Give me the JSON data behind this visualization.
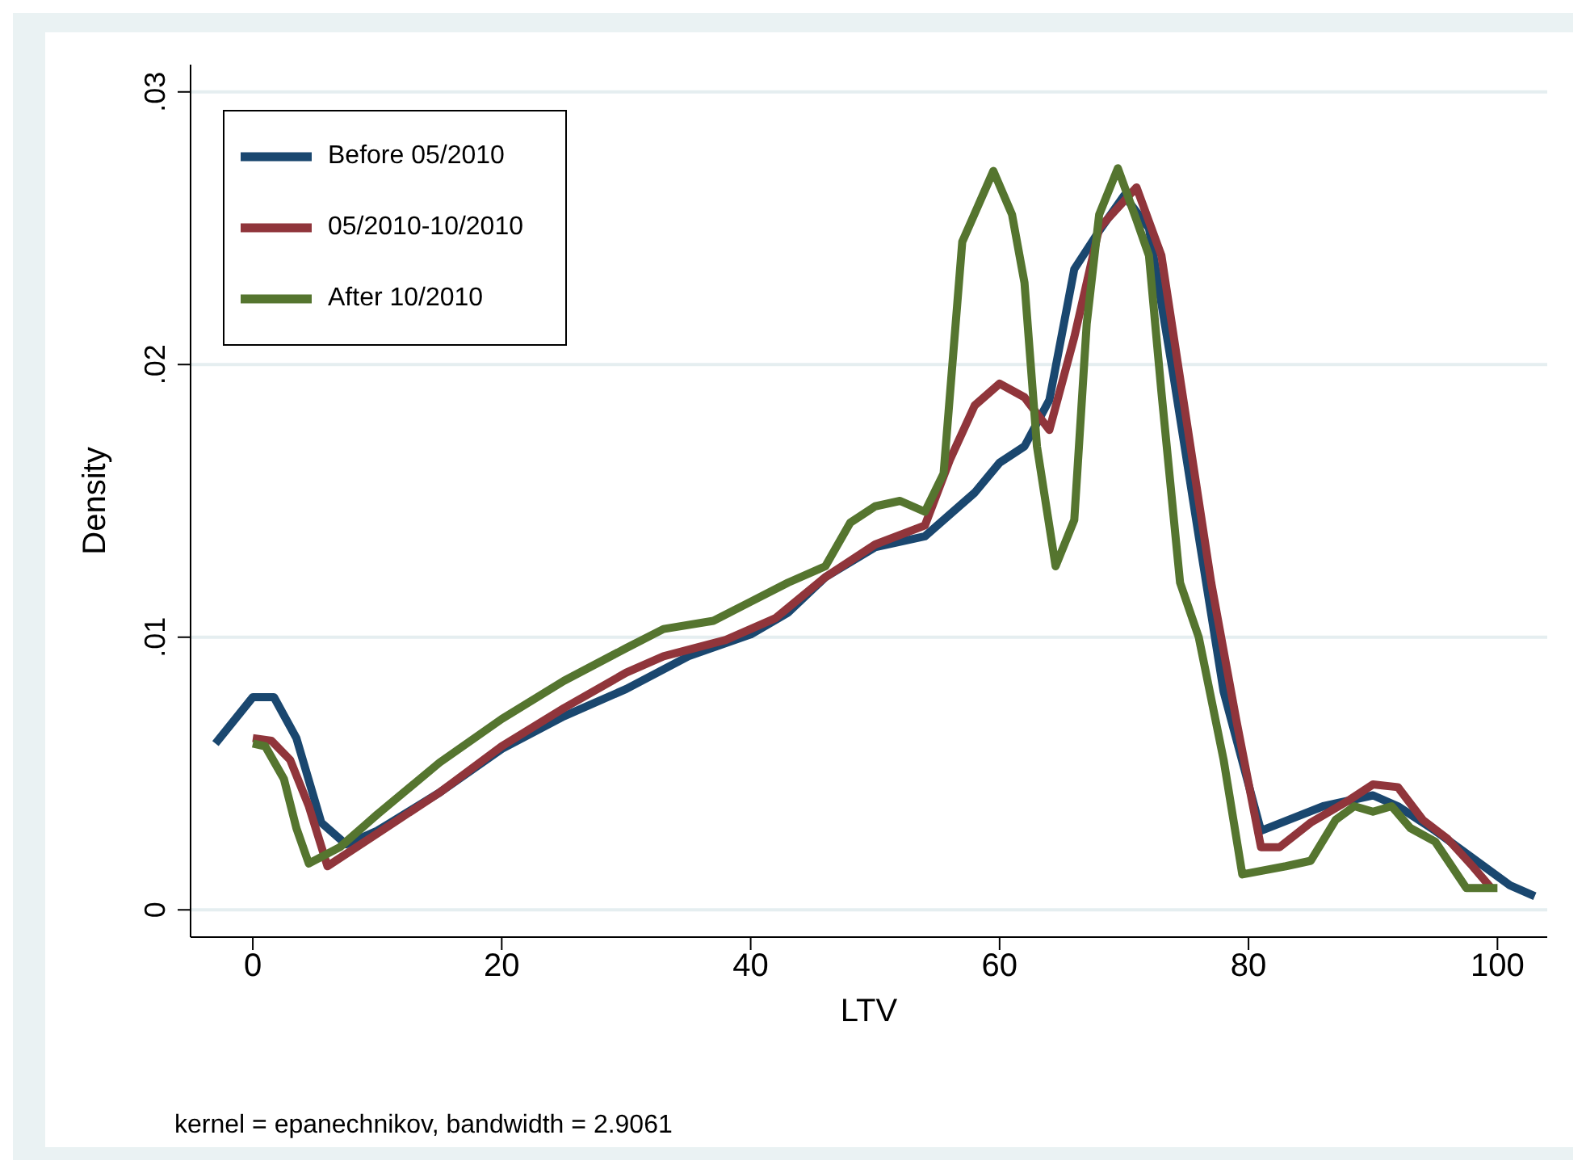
{
  "chart_data": {
    "type": "line",
    "xlabel": "LTV",
    "ylabel": "Density",
    "annotations": [
      "kernel = epanechnikov, bandwidth = 2.9061"
    ],
    "xlim": [
      -5,
      104
    ],
    "xticks": [
      0,
      20,
      40,
      60,
      80,
      100
    ],
    "ylim": [
      -0.001,
      0.031
    ],
    "yticks": [
      {
        "value": 0,
        "label": "0"
      },
      {
        "value": 0.01,
        "label": ".01"
      },
      {
        "value": 0.02,
        "label": ".02"
      },
      {
        "value": 0.03,
        "label": ".03"
      }
    ],
    "grid": "y",
    "legend": "top left",
    "marker": "none",
    "line_style": "solid",
    "series": [
      {
        "name": "Before 05/2010",
        "color": "#1a476f",
        "x": [
          -3,
          0,
          1.7,
          3.5,
          5.5,
          7.5,
          10,
          15,
          20,
          25,
          30,
          35,
          40,
          43,
          46,
          50,
          54,
          58,
          60,
          62,
          64,
          66,
          68,
          70,
          72,
          74,
          76,
          78,
          81,
          86,
          90,
          92,
          95,
          98,
          101,
          103
        ],
        "values": [
          0.0061,
          0.0078,
          0.0078,
          0.0063,
          0.0032,
          0.0024,
          0.0029,
          0.0043,
          0.0059,
          0.0071,
          0.0081,
          0.0093,
          0.0101,
          0.0109,
          0.0122,
          0.0133,
          0.0137,
          0.0153,
          0.0164,
          0.017,
          0.0187,
          0.0235,
          0.0249,
          0.0262,
          0.025,
          0.0195,
          0.0137,
          0.008,
          0.0029,
          0.0038,
          0.0042,
          0.0038,
          0.0029,
          0.0019,
          0.0009,
          0.0005
        ]
      },
      {
        "name": "05/2010-10/2010",
        "color": "#90353b",
        "x": [
          0,
          1.5,
          3,
          4.5,
          6,
          8,
          10,
          15,
          20,
          25,
          30,
          33,
          38,
          42,
          46,
          50,
          54,
          56,
          58,
          60,
          62,
          64,
          66,
          68,
          70,
          71,
          73,
          75,
          77,
          79,
          81,
          82.5,
          85,
          88,
          90,
          92,
          94,
          96,
          98,
          99.5
        ],
        "values": [
          0.0063,
          0.0062,
          0.0055,
          0.0038,
          0.0016,
          0.0022,
          0.0028,
          0.0043,
          0.006,
          0.0074,
          0.0087,
          0.0093,
          0.0099,
          0.0107,
          0.0122,
          0.0134,
          0.0141,
          0.0165,
          0.0185,
          0.0193,
          0.0188,
          0.0176,
          0.021,
          0.025,
          0.026,
          0.0265,
          0.024,
          0.018,
          0.012,
          0.007,
          0.0023,
          0.0023,
          0.0032,
          0.004,
          0.0046,
          0.0045,
          0.0033,
          0.0026,
          0.0016,
          0.0008
        ]
      },
      {
        "name": "After 10/2010",
        "color": "#55752f",
        "x": [
          0,
          1,
          2.5,
          3.5,
          4.5,
          7,
          10,
          15,
          20,
          25,
          30,
          33,
          37,
          40,
          43,
          46,
          48,
          50,
          52,
          54,
          55.5,
          57,
          59.5,
          61,
          62,
          63,
          64.5,
          66,
          67,
          68,
          69.5,
          71,
          72,
          73,
          74.5,
          76,
          78,
          79.5,
          83,
          85,
          87,
          88.5,
          90,
          91.5,
          93,
          95,
          97.5,
          100
        ],
        "values": [
          0.0061,
          0.006,
          0.0048,
          0.003,
          0.0017,
          0.0023,
          0.0035,
          0.0054,
          0.007,
          0.0084,
          0.0096,
          0.0103,
          0.0106,
          0.0113,
          0.012,
          0.0126,
          0.0142,
          0.0148,
          0.015,
          0.0146,
          0.016,
          0.0245,
          0.0271,
          0.0255,
          0.023,
          0.017,
          0.0126,
          0.0143,
          0.0215,
          0.0255,
          0.0272,
          0.0253,
          0.024,
          0.019,
          0.012,
          0.01,
          0.0055,
          0.0013,
          0.0016,
          0.0018,
          0.0033,
          0.0038,
          0.0036,
          0.0038,
          0.003,
          0.0025,
          0.0008,
          0.0008
        ]
      }
    ]
  }
}
